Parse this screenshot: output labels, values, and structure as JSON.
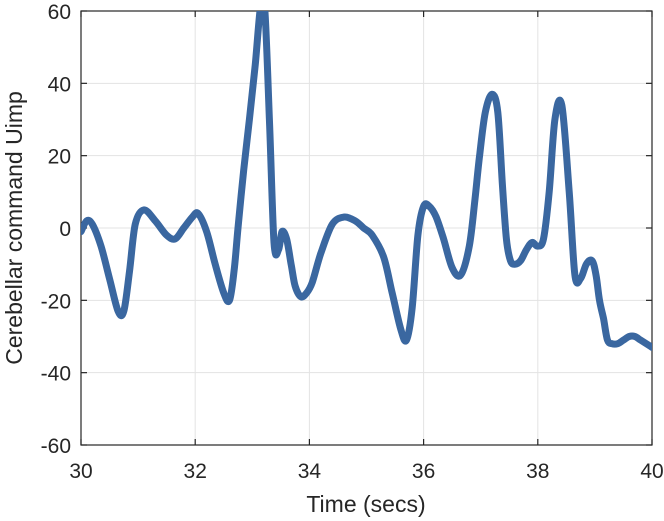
{
  "chart_data": {
    "type": "line",
    "title": "",
    "xlabel": "Time (secs)",
    "ylabel": "Cerebellar command Uimp",
    "xlim": [
      30,
      40
    ],
    "ylim": [
      -60,
      60
    ],
    "xticks": [
      30,
      32,
      34,
      36,
      38,
      40
    ],
    "yticks": [
      -60,
      -40,
      -20,
      0,
      20,
      40,
      60
    ],
    "xtick_labels": [
      "30",
      "32",
      "34",
      "36",
      "38",
      "40"
    ],
    "ytick_labels": [
      "-60",
      "-40",
      "-20",
      "0",
      "20",
      "40",
      "60"
    ],
    "grid": true,
    "legend": "none",
    "line_color": "#3a67a0",
    "series": [
      {
        "x": [
          30.0,
          30.1,
          30.2,
          30.35,
          30.5,
          30.65,
          30.75,
          30.85,
          30.95,
          31.1,
          31.3,
          31.5,
          31.65,
          31.8,
          31.95,
          32.05,
          32.2,
          32.35,
          32.5,
          32.6,
          32.68,
          32.75,
          32.85,
          32.95,
          33.05,
          33.15,
          33.22,
          33.3,
          33.38,
          33.46,
          33.52,
          33.6,
          33.68,
          33.75,
          33.85,
          33.95,
          34.05,
          34.2,
          34.4,
          34.6,
          34.8,
          34.95,
          35.1,
          35.3,
          35.45,
          35.6,
          35.7,
          35.8,
          35.9,
          36.0,
          36.1,
          36.22,
          36.35,
          36.5,
          36.65,
          36.8,
          36.9,
          36.98,
          37.08,
          37.2,
          37.3,
          37.38,
          37.45,
          37.52,
          37.6,
          37.7,
          37.8,
          37.9,
          38.0,
          38.1,
          38.2,
          38.3,
          38.42,
          38.55,
          38.65,
          38.75,
          38.85,
          38.95,
          39.02,
          39.08,
          39.15,
          39.22,
          39.3,
          39.4,
          39.5,
          39.6,
          39.7,
          39.8,
          39.9,
          40.0
        ],
        "y": [
          -1,
          2,
          1,
          -5,
          -14,
          -23,
          -23,
          -12,
          1,
          5,
          2,
          -2,
          -3,
          0,
          3,
          4,
          -1,
          -10,
          -18,
          -20,
          -12,
          0,
          16,
          30,
          45,
          62,
          60,
          30,
          -4,
          -6,
          -1,
          -3,
          -10,
          -16,
          -19,
          -18,
          -15,
          -7,
          1,
          3,
          2,
          0,
          -2,
          -8,
          -18,
          -28,
          -31,
          -22,
          -2,
          6,
          6,
          3,
          -3,
          -11,
          -13,
          -5,
          8,
          20,
          32,
          37,
          32,
          12,
          -3,
          -9,
          -10,
          -9,
          -6,
          -4,
          -5,
          -3,
          10,
          30,
          34,
          10,
          -13,
          -14,
          -10,
          -9,
          -13,
          -20,
          -25,
          -31,
          -32,
          -32,
          -31,
          -30,
          -30,
          -31,
          -32,
          -33
        ]
      }
    ]
  }
}
